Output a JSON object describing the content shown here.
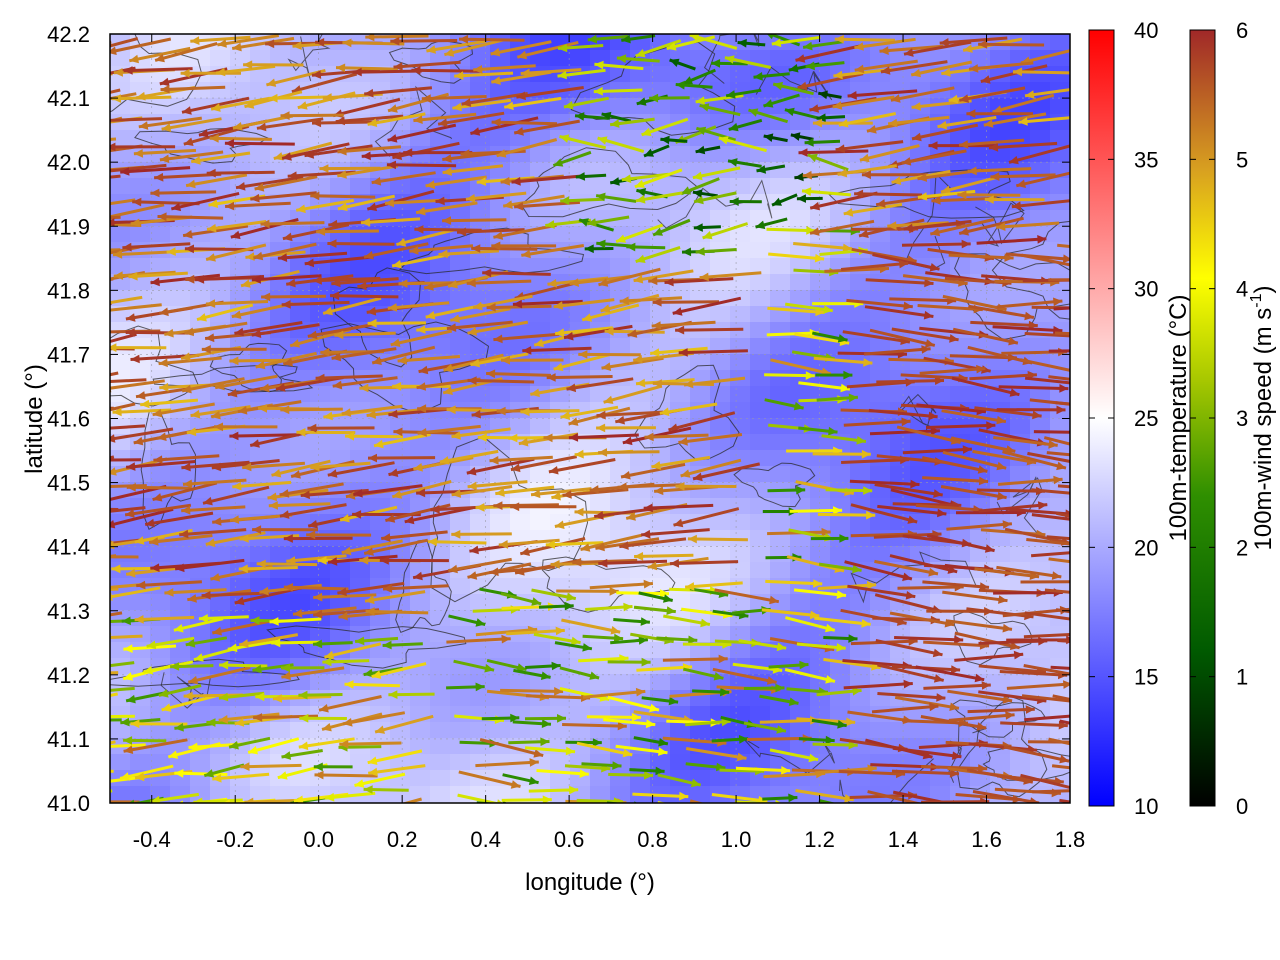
{
  "chart_data": {
    "type": "heatmap",
    "xlabel": "longitude (°)",
    "ylabel": "latitude (°)",
    "xlim": [
      -0.5,
      1.8
    ],
    "ylim": [
      41.0,
      42.2
    ],
    "xticks": [
      "-0.4",
      "-0.2",
      "0.0",
      "0.2",
      "0.4",
      "0.6",
      "0.8",
      "1.0",
      "1.2",
      "1.4",
      "1.6",
      "1.8"
    ],
    "yticks": [
      "41.0",
      "41.1",
      "41.2",
      "41.3",
      "41.4",
      "41.5",
      "41.6",
      "41.7",
      "41.8",
      "41.9",
      "42.0",
      "42.1",
      "42.2"
    ],
    "grid": true,
    "overlays": [
      "wind vectors colored by speed",
      "terrain contour lines"
    ],
    "colorbars": [
      {
        "label": "100m-temperature (°C)",
        "range": [
          10,
          40
        ],
        "ticks": [
          "10",
          "15",
          "20",
          "25",
          "30",
          "35",
          "40"
        ],
        "colors": [
          "#0000ff",
          "#ffffff",
          "#ff0000"
        ]
      },
      {
        "label": "100m-wind speed (m s-1)",
        "label_main": "100m-wind speed (m s",
        "label_sup": "-1",
        "label_end": ")",
        "range": [
          0,
          6
        ],
        "ticks": [
          "0",
          "1",
          "2",
          "3",
          "4",
          "5",
          "6"
        ],
        "colors": [
          "#000000",
          "#006400",
          "#228b22",
          "#9acd32",
          "#ffff00",
          "#daa520",
          "#d2691e",
          "#a52a2a"
        ]
      }
    ],
    "field_summary": {
      "temperature_typical_c": [
        15,
        24
      ],
      "wind_speed_typical_ms": [
        0,
        6
      ],
      "dominant_flow": "easterly vectors across most of the domain; westerly vectors in the south-east"
    }
  }
}
